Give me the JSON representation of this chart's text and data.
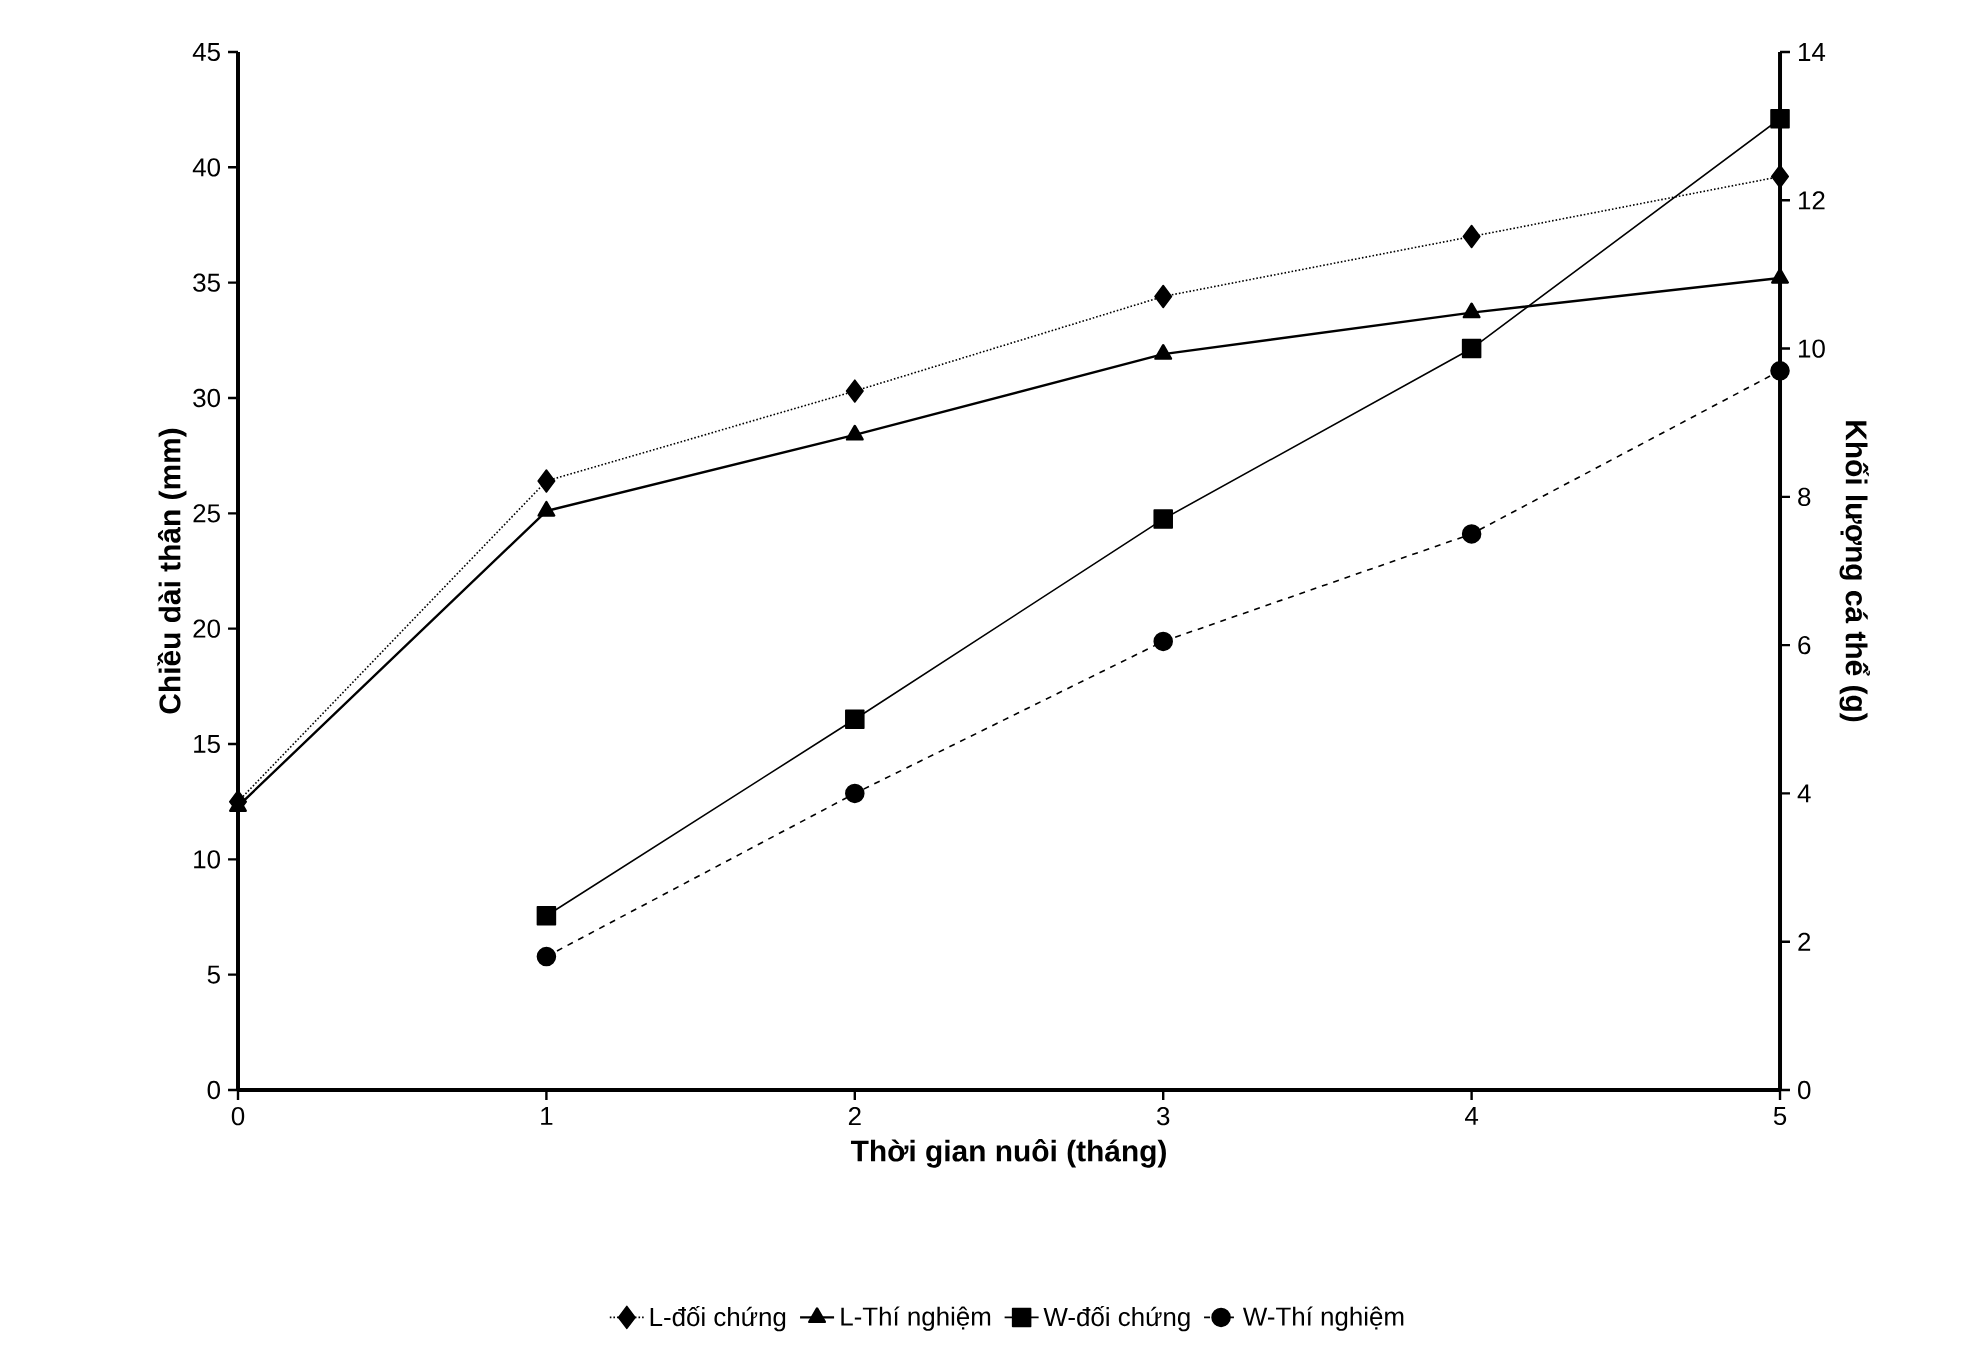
{
  "chart_data": {
    "type": "line",
    "xlabel": "Thời gian nuôi (tháng)",
    "ylabel": "Chiều dài thân (mm)",
    "y2label": "Khối lượng cá thể (g)",
    "x": [
      0,
      1,
      2,
      3,
      4,
      5
    ],
    "xlim": [
      0,
      5
    ],
    "xticks": [
      0,
      1,
      2,
      3,
      4,
      5
    ],
    "ylim": [
      0,
      45
    ],
    "yticks": [
      0,
      5,
      10,
      15,
      20,
      25,
      30,
      35,
      40,
      45
    ],
    "y2lim": [
      0,
      14
    ],
    "y2ticks": [
      0,
      2,
      4,
      6,
      8,
      10,
      12,
      14
    ],
    "legend": "bottom",
    "series": [
      {
        "name": "L-đối chứng",
        "color": "#000000",
        "marker": "diamond",
        "line_style": "dotted",
        "values": [
          12.5,
          26.4,
          30.3,
          34.4,
          37.0,
          39.6
        ]
      },
      {
        "name": "L-Thí nghiệm",
        "color": "#000000",
        "marker": "triangle",
        "line_style": "solid",
        "values": [
          12.3,
          25.1,
          28.4,
          31.9,
          33.7,
          35.2
        ]
      },
      {
        "name": "W-đối chứng",
        "color": "#000000",
        "marker": "square",
        "line_style": "solid",
        "axis": "y2",
        "x": [
          1,
          2,
          3,
          4,
          5
        ],
        "values": [
          2.35,
          5.0,
          7.7,
          10.0,
          13.1
        ]
      },
      {
        "name": "W-Thí nghiệm",
        "color": "#000000",
        "marker": "circle",
        "line_style": "dashed",
        "axis": "y2",
        "x": [
          1,
          2,
          3,
          4,
          5
        ],
        "values": [
          1.8,
          4.0,
          6.05,
          7.5,
          9.7
        ]
      }
    ]
  }
}
